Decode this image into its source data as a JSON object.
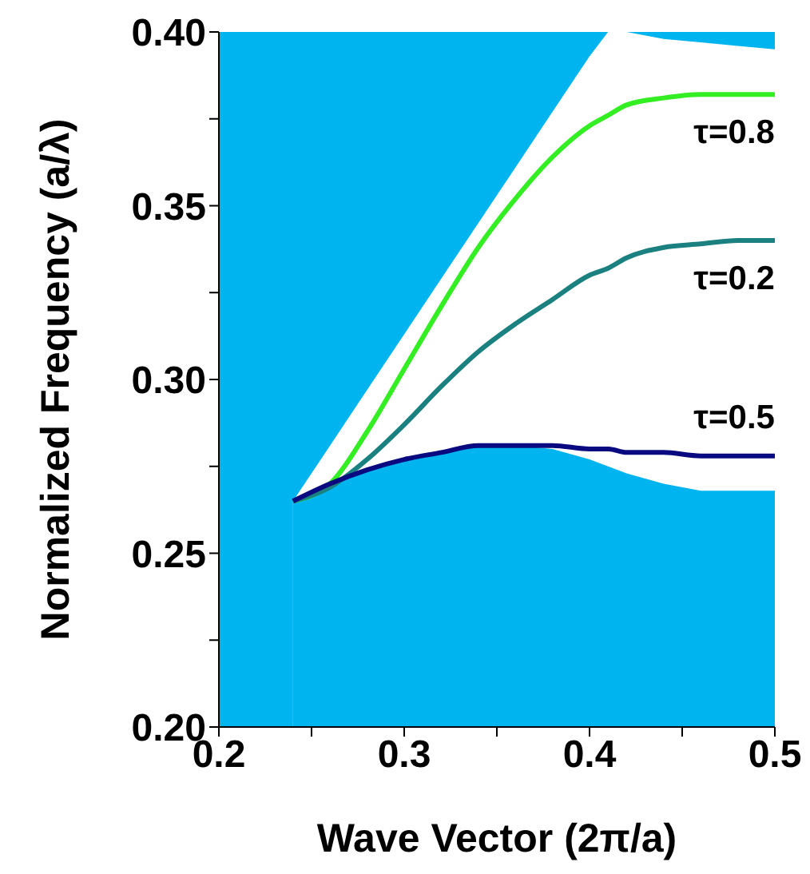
{
  "chart_data": {
    "type": "line",
    "xlabel": "Wave Vector (2π/a)",
    "ylabel": "Normalized Frequency (a/λ)",
    "x": [
      0.24,
      0.26,
      0.28,
      0.3,
      0.32,
      0.34,
      0.36,
      0.38,
      0.4,
      0.41,
      0.42,
      0.44,
      0.46,
      0.48,
      0.5
    ],
    "bands": [
      {
        "axis": "y",
        "from": 0.2,
        "to": 0.4,
        "color": "#00b4ef"
      }
    ],
    "series": [
      {
        "type": "area",
        "color": "#ffffff",
        "values": [
          0.265,
          0.281,
          0.297,
          0.313,
          0.329,
          0.345,
          0.361,
          0.377,
          0.393,
          0.4,
          0.4,
          0.398,
          0.397,
          0.396,
          0.395
        ]
      },
      {
        "type": "area",
        "color": "#00b4ef",
        "values": [
          0.265,
          0.27,
          0.274,
          0.277,
          0.279,
          0.281,
          0.281,
          0.28,
          0.277,
          0.275,
          0.273,
          0.27,
          0.268,
          0.268,
          0.268
        ]
      },
      {
        "name": "τ=0.8",
        "color": "#33ee22",
        "values": [
          0.265,
          0.27,
          0.285,
          0.303,
          0.321,
          0.338,
          0.352,
          0.364,
          0.373,
          0.376,
          0.379,
          0.381,
          0.382,
          0.382,
          0.382
        ]
      },
      {
        "name": "τ=0.2",
        "color": "#1a8080",
        "values": [
          0.265,
          0.269,
          0.277,
          0.287,
          0.298,
          0.308,
          0.316,
          0.323,
          0.33,
          0.332,
          0.335,
          0.338,
          0.339,
          0.34,
          0.34
        ]
      },
      {
        "name": "τ=0.5",
        "color": "#0a0a80",
        "values": [
          0.265,
          0.27,
          0.274,
          0.277,
          0.279,
          0.281,
          0.281,
          0.281,
          0.28,
          0.28,
          0.279,
          0.279,
          0.278,
          0.278,
          0.278
        ]
      }
    ],
    "xlim": [
      0.2,
      0.5
    ],
    "xticks": [
      0.2,
      {
        "value": 0.25,
        "label": null
      },
      0.3,
      {
        "value": 0.35,
        "label": null
      },
      0.4,
      {
        "value": 0.45,
        "label": null
      },
      0.5
    ],
    "ylim": [
      0.2,
      0.4
    ],
    "yticks": [
      {
        "value": 0.2,
        "label": "0.20"
      },
      {
        "value": 0.225,
        "label": null
      },
      {
        "value": 0.25,
        "label": "0.25"
      },
      {
        "value": 0.275,
        "label": null
      },
      {
        "value": 0.3,
        "label": "0.30"
      },
      {
        "value": 0.325,
        "label": null
      },
      {
        "value": 0.35,
        "label": "0.35"
      },
      {
        "value": 0.375,
        "label": null
      },
      {
        "value": 0.4,
        "label": "0.40"
      }
    ]
  }
}
